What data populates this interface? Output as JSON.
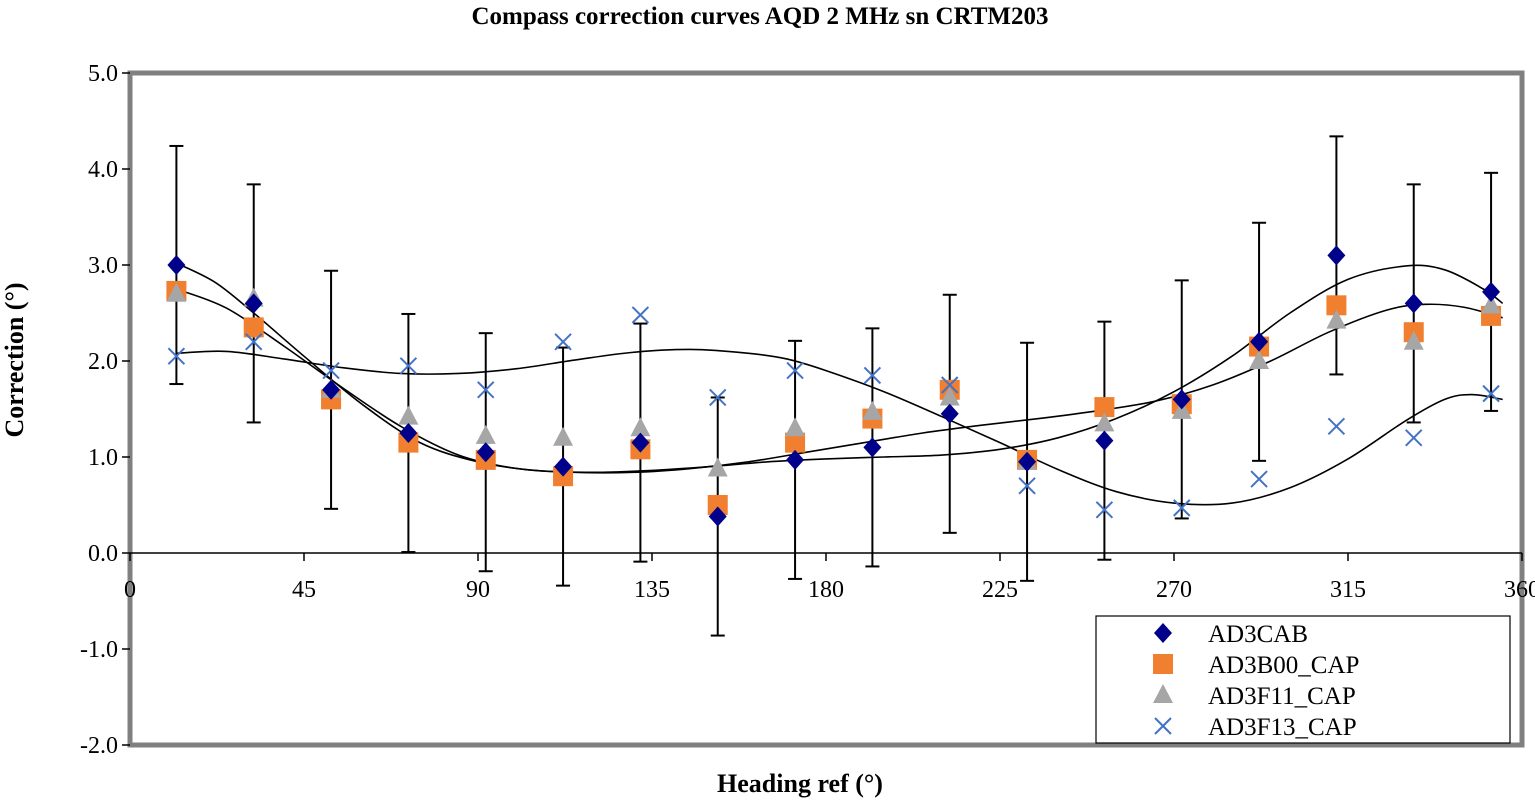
{
  "chart_data": {
    "type": "scatter",
    "title": "Compass correction curves AQD 2 MHz sn CRTM203",
    "xlabel": "Heading ref (°)",
    "ylabel": "Correction (°)",
    "xlim": [
      0,
      360
    ],
    "ylim": [
      -2.0,
      5.0
    ],
    "xticks": [
      "0",
      "45",
      "90",
      "135",
      "180",
      "225",
      "270",
      "315",
      "360"
    ],
    "yticks": [
      "-2.0",
      "-1.0",
      "0.0",
      "1.0",
      "2.0",
      "3.0",
      "4.0",
      "5.0"
    ],
    "grid": false,
    "legend_position": "bottom-right",
    "series": [
      {
        "name": "AD3CAB",
        "marker": "diamond",
        "color": "#00008b",
        "points": [
          [
            12,
            3.0
          ],
          [
            32,
            2.6
          ],
          [
            52,
            1.7
          ],
          [
            72,
            1.25
          ],
          [
            92,
            1.05
          ],
          [
            112,
            0.9
          ],
          [
            132,
            1.15
          ],
          [
            152,
            0.38
          ],
          [
            172,
            0.97
          ],
          [
            192,
            1.1
          ],
          [
            212,
            1.45
          ],
          [
            232,
            0.95
          ],
          [
            252,
            1.17
          ],
          [
            272,
            1.6
          ],
          [
            292,
            2.2
          ],
          [
            312,
            3.1
          ],
          [
            332,
            2.6
          ],
          [
            352,
            2.72
          ]
        ],
        "error": [
          1.24,
          1.24,
          1.24,
          1.24,
          1.24,
          1.24,
          1.24,
          1.24,
          1.24,
          1.24,
          1.24,
          1.24,
          1.24,
          1.24,
          1.24,
          1.24,
          1.24,
          1.24
        ]
      },
      {
        "name": "AD3B00_CAP",
        "marker": "square",
        "color": "#f07f2f",
        "points": [
          [
            12,
            2.73
          ],
          [
            32,
            2.35
          ],
          [
            52,
            1.6
          ],
          [
            72,
            1.15
          ],
          [
            92,
            0.97
          ],
          [
            112,
            0.8
          ],
          [
            132,
            1.08
          ],
          [
            152,
            0.5
          ],
          [
            172,
            1.15
          ],
          [
            192,
            1.4
          ],
          [
            212,
            1.7
          ],
          [
            232,
            0.97
          ],
          [
            252,
            1.52
          ],
          [
            272,
            1.55
          ],
          [
            292,
            2.15
          ],
          [
            312,
            2.58
          ],
          [
            332,
            2.3
          ],
          [
            352,
            2.47
          ]
        ]
      },
      {
        "name": "AD3F11_CAP",
        "marker": "triangle",
        "color": "#a6a6a6",
        "points": [
          [
            12,
            2.7
          ],
          [
            32,
            2.65
          ],
          [
            52,
            1.7
          ],
          [
            72,
            1.42
          ],
          [
            92,
            1.22
          ],
          [
            112,
            1.2
          ],
          [
            132,
            1.3
          ],
          [
            152,
            0.88
          ],
          [
            172,
            1.3
          ],
          [
            192,
            1.47
          ],
          [
            212,
            1.62
          ],
          [
            232,
            0.95
          ],
          [
            252,
            1.35
          ],
          [
            272,
            1.48
          ],
          [
            292,
            2.0
          ],
          [
            312,
            2.42
          ],
          [
            332,
            2.2
          ],
          [
            352,
            2.58
          ]
        ]
      },
      {
        "name": "AD3F13_CAP",
        "marker": "x",
        "color": "#4472c4",
        "points": [
          [
            12,
            2.05
          ],
          [
            32,
            2.2
          ],
          [
            52,
            1.9
          ],
          [
            72,
            1.95
          ],
          [
            92,
            1.7
          ],
          [
            112,
            2.2
          ],
          [
            132,
            2.48
          ],
          [
            152,
            1.62
          ],
          [
            172,
            1.9
          ],
          [
            192,
            1.85
          ],
          [
            212,
            1.75
          ],
          [
            232,
            0.7
          ],
          [
            252,
            0.45
          ],
          [
            272,
            0.47
          ],
          [
            292,
            0.77
          ],
          [
            312,
            1.32
          ],
          [
            332,
            1.2
          ],
          [
            352,
            1.66
          ]
        ]
      }
    ],
    "trend_lines": [
      {
        "name": "trend-1",
        "color": "#000000",
        "points": [
          [
            12,
            3.02
          ],
          [
            22,
            2.82
          ],
          [
            32,
            2.5
          ],
          [
            45,
            2.05
          ],
          [
            60,
            1.55
          ],
          [
            75,
            1.15
          ],
          [
            90,
            0.95
          ],
          [
            105,
            0.86
          ],
          [
            120,
            0.84
          ],
          [
            135,
            0.86
          ],
          [
            150,
            0.9
          ],
          [
            165,
            0.95
          ],
          [
            180,
            0.98
          ],
          [
            195,
            1.0
          ],
          [
            210,
            1.02
          ],
          [
            225,
            1.08
          ],
          [
            240,
            1.2
          ],
          [
            255,
            1.4
          ],
          [
            270,
            1.68
          ],
          [
            285,
            2.05
          ],
          [
            300,
            2.5
          ],
          [
            315,
            2.85
          ],
          [
            330,
            2.99
          ],
          [
            340,
            2.95
          ],
          [
            350,
            2.75
          ],
          [
            355,
            2.6
          ]
        ]
      },
      {
        "name": "trend-2",
        "color": "#000000",
        "points": [
          [
            12,
            2.75
          ],
          [
            25,
            2.55
          ],
          [
            40,
            2.15
          ],
          [
            55,
            1.72
          ],
          [
            70,
            1.32
          ],
          [
            85,
            1.02
          ],
          [
            100,
            0.88
          ],
          [
            115,
            0.84
          ],
          [
            130,
            0.84
          ],
          [
            145,
            0.88
          ],
          [
            160,
            0.95
          ],
          [
            175,
            1.05
          ],
          [
            190,
            1.15
          ],
          [
            205,
            1.25
          ],
          [
            220,
            1.33
          ],
          [
            235,
            1.4
          ],
          [
            250,
            1.48
          ],
          [
            265,
            1.58
          ],
          [
            280,
            1.75
          ],
          [
            295,
            2.0
          ],
          [
            310,
            2.3
          ],
          [
            325,
            2.53
          ],
          [
            335,
            2.59
          ],
          [
            345,
            2.56
          ],
          [
            355,
            2.45
          ]
        ]
      },
      {
        "name": "trend-3",
        "color": "#000000",
        "points": [
          [
            12,
            2.08
          ],
          [
            25,
            2.1
          ],
          [
            40,
            2.02
          ],
          [
            55,
            1.93
          ],
          [
            70,
            1.87
          ],
          [
            85,
            1.87
          ],
          [
            100,
            1.92
          ],
          [
            115,
            2.01
          ],
          [
            130,
            2.09
          ],
          [
            145,
            2.12
          ],
          [
            160,
            2.08
          ],
          [
            170,
            2.02
          ],
          [
            180,
            1.9
          ],
          [
            195,
            1.68
          ],
          [
            210,
            1.42
          ],
          [
            225,
            1.15
          ],
          [
            240,
            0.87
          ],
          [
            255,
            0.64
          ],
          [
            270,
            0.52
          ],
          [
            285,
            0.52
          ],
          [
            300,
            0.68
          ],
          [
            315,
            0.98
          ],
          [
            330,
            1.38
          ],
          [
            340,
            1.6
          ],
          [
            347,
            1.65
          ],
          [
            355,
            1.6
          ]
        ]
      }
    ]
  }
}
